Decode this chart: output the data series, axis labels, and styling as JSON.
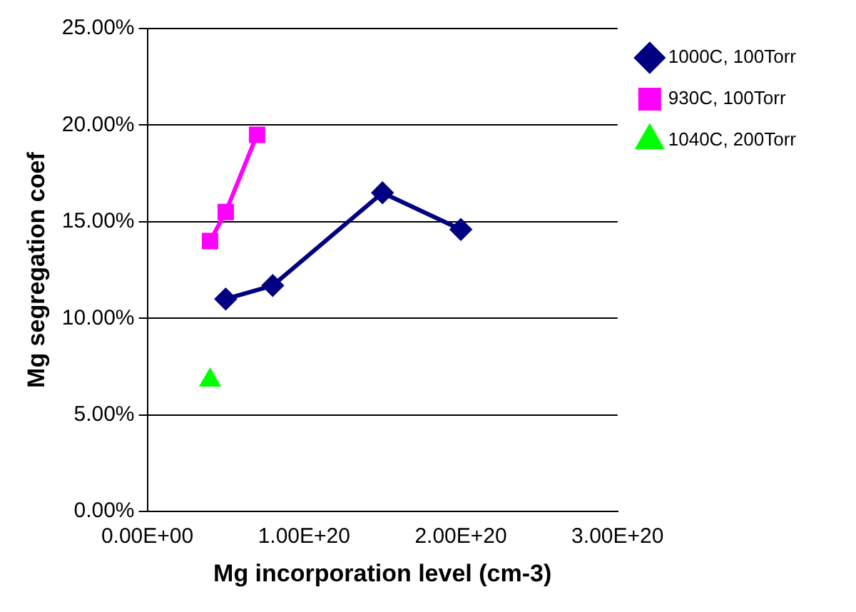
{
  "chart_data": {
    "type": "line",
    "xlabel": "Mg incorporation level (cm-3)",
    "ylabel": "Mg segregation coef",
    "series": [
      {
        "name": "1000C, 100Torr",
        "color": "#000080",
        "marker": "diamond",
        "x": [
          5e+19,
          8e+19,
          1.5e+20,
          2e+20
        ],
        "values": [
          11,
          11.7,
          16.5,
          14.6
        ]
      },
      {
        "name": "930C, 100Torr",
        "color": "#ff00ff",
        "marker": "square",
        "x": [
          4e+19,
          5e+19,
          7e+19
        ],
        "values": [
          14,
          15.5,
          19.5
        ]
      },
      {
        "name": "1040C, 200Torr",
        "color": "#00ff00",
        "marker": "triangle",
        "x": [
          4e+19
        ],
        "values": [
          6.8
        ]
      }
    ],
    "xlim": [
      0,
      3e+20
    ],
    "xticks": [
      {
        "value": 0,
        "label": "0.00E+00"
      },
      {
        "value": 1e+20,
        "label": "1.00E+20"
      },
      {
        "value": 2e+20,
        "label": "2.00E+20"
      },
      {
        "value": 3e+20,
        "label": "3.00E+20"
      }
    ],
    "ylim": [
      0,
      25
    ],
    "yticks": [
      {
        "value": 0,
        "label": "0.00%"
      },
      {
        "value": 5,
        "label": "5.00%"
      },
      {
        "value": 10,
        "label": "10.00%"
      },
      {
        "value": 15,
        "label": "15.00%"
      },
      {
        "value": 20,
        "label": "20.00%"
      },
      {
        "value": 25,
        "label": "25.00%"
      }
    ],
    "grid": "y",
    "legend": "top right"
  }
}
